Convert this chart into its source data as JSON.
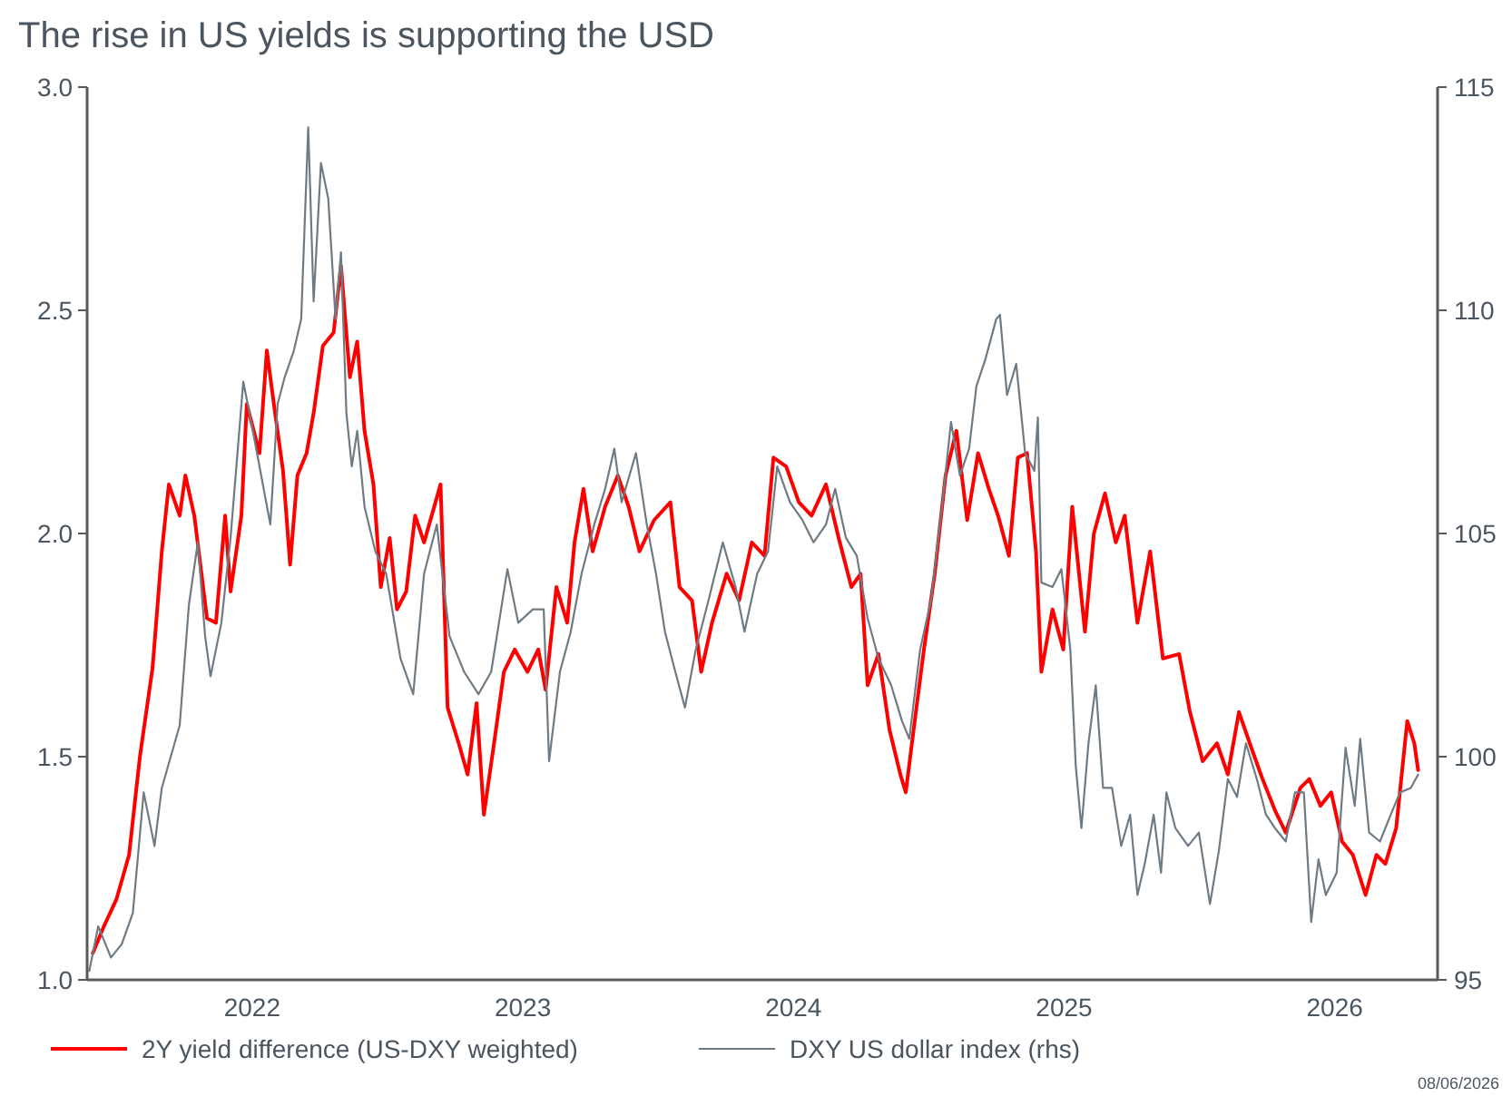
{
  "chart_data": {
    "type": "line",
    "title": "The rise in US yields is supporting the USD",
    "xlim": [
      2021.39,
      2026.38
    ],
    "xticks": [
      2022,
      2023,
      2024,
      2025,
      2026
    ],
    "ylim": [
      1.0,
      3.0
    ],
    "yticks": [
      {
        "value": 1,
        "label": "1.0"
      },
      1.5,
      {
        "value": 2,
        "label": "2.0"
      },
      2.5,
      {
        "value": 3,
        "label": "3.0"
      }
    ],
    "y2lim": [
      95,
      115
    ],
    "y2ticks": [
      95,
      100,
      105,
      110,
      115
    ],
    "legend": "bottom",
    "grid": false,
    "line_style": "solid",
    "marker": "none",
    "annotations": [
      "08/06/2026"
    ],
    "series": [
      {
        "name": "2Y yield difference (US-DXY weighted)",
        "color": "#ff0000",
        "x": [
          2021.411,
          2021.452,
          2021.498,
          2021.545,
          2021.585,
          2021.632,
          2021.666,
          2021.692,
          2021.732,
          2021.753,
          2021.786,
          2021.833,
          2021.866,
          2021.9,
          2021.92,
          2021.96,
          2021.98,
          2022.027,
          2022.054,
          2022.08,
          2022.114,
          2022.14,
          2022.167,
          2022.201,
          2022.227,
          2022.261,
          2022.301,
          2022.328,
          2022.361,
          2022.388,
          2022.415,
          2022.448,
          2022.475,
          2022.508,
          2022.535,
          2022.569,
          2022.602,
          2022.635,
          2022.696,
          2022.722,
          2022.763,
          2022.796,
          2022.829,
          2022.856,
          2022.896,
          2022.93,
          2022.97,
          2023.017,
          2023.057,
          2023.084,
          2023.124,
          2023.164,
          2023.191,
          2023.224,
          2023.258,
          2023.304,
          2023.351,
          2023.391,
          2023.431,
          2023.485,
          2023.545,
          2023.579,
          2023.625,
          2023.659,
          2023.699,
          2023.753,
          2023.799,
          2023.846,
          2023.893,
          2023.926,
          2023.973,
          2024.02,
          2024.067,
          2024.12,
          2024.167,
          2024.214,
          2024.248,
          2024.274,
          2024.314,
          2024.355,
          2024.395,
          2024.415,
          2024.448,
          2024.482,
          2024.522,
          2024.562,
          2024.602,
          2024.642,
          2024.682,
          2024.722,
          2024.756,
          2024.796,
          2024.829,
          2024.863,
          2024.896,
          2024.916,
          2024.957,
          2024.997,
          2025.03,
          2025.077,
          2025.11,
          2025.151,
          2025.191,
          2025.224,
          2025.271,
          2025.318,
          2025.365,
          2025.425,
          2025.465,
          2025.512,
          2025.565,
          2025.605,
          2025.646,
          2025.686,
          2025.733,
          2025.779,
          2025.819,
          2025.873,
          2025.906,
          2025.947,
          2025.987,
          2026.027,
          2026.067,
          2026.114,
          2026.154,
          2026.187,
          2026.227,
          2026.268,
          2026.294,
          2026.308
        ],
        "values": [
          1.06,
          1.12,
          1.18,
          1.28,
          1.5,
          1.7,
          1.96,
          2.11,
          2.04,
          2.13,
          2.04,
          1.81,
          1.8,
          2.04,
          1.87,
          2.04,
          2.29,
          2.18,
          2.41,
          2.29,
          2.14,
          1.93,
          2.13,
          2.18,
          2.27,
          2.42,
          2.45,
          2.6,
          2.35,
          2.43,
          2.23,
          2.11,
          1.88,
          1.99,
          1.83,
          1.87,
          2.04,
          1.98,
          2.11,
          1.61,
          1.53,
          1.46,
          1.62,
          1.37,
          1.54,
          1.69,
          1.74,
          1.69,
          1.74,
          1.65,
          1.88,
          1.8,
          1.98,
          2.1,
          1.96,
          2.06,
          2.13,
          2.06,
          1.96,
          2.03,
          2.07,
          1.88,
          1.85,
          1.69,
          1.8,
          1.91,
          1.85,
          1.98,
          1.95,
          2.17,
          2.15,
          2.07,
          2.04,
          2.11,
          1.99,
          1.88,
          1.91,
          1.66,
          1.73,
          1.56,
          1.46,
          1.42,
          1.58,
          1.74,
          1.91,
          2.13,
          2.23,
          2.03,
          2.18,
          2.1,
          2.04,
          1.95,
          2.17,
          2.18,
          1.96,
          1.69,
          1.83,
          1.74,
          2.06,
          1.78,
          2.0,
          2.09,
          1.98,
          2.04,
          1.8,
          1.96,
          1.72,
          1.73,
          1.6,
          1.49,
          1.53,
          1.46,
          1.6,
          1.53,
          1.45,
          1.38,
          1.33,
          1.43,
          1.45,
          1.39,
          1.42,
          1.31,
          1.28,
          1.19,
          1.28,
          1.26,
          1.34,
          1.58,
          1.53,
          1.47
        ]
      },
      {
        "name": "DXY US dollar index (rhs)",
        "color": "#6f7b84",
        "axis": "y2",
        "x": [
          2021.398,
          2021.431,
          2021.478,
          2021.518,
          2021.559,
          2021.599,
          2021.639,
          2021.666,
          2021.699,
          2021.732,
          2021.766,
          2021.799,
          2021.826,
          2021.846,
          2021.886,
          2021.92,
          2021.967,
          2021.993,
          2022.027,
          2022.067,
          2022.094,
          2022.12,
          2022.154,
          2022.181,
          2022.207,
          2022.227,
          2022.254,
          2022.281,
          2022.308,
          2022.328,
          2022.348,
          2022.368,
          2022.388,
          2022.415,
          2022.455,
          2022.495,
          2022.548,
          2022.595,
          2022.635,
          2022.682,
          2022.729,
          2022.783,
          2022.836,
          2022.883,
          2022.943,
          2022.983,
          2023.037,
          2023.077,
          2023.097,
          2023.137,
          2023.177,
          2023.217,
          2023.264,
          2023.304,
          2023.338,
          2023.365,
          2023.418,
          2023.458,
          2023.492,
          2023.525,
          2023.559,
          2023.599,
          2023.639,
          2023.686,
          2023.739,
          2023.786,
          2023.819,
          2023.866,
          2023.906,
          2023.94,
          2023.987,
          2024.033,
          2024.074,
          2024.12,
          2024.154,
          2024.194,
          2024.234,
          2024.274,
          2024.314,
          2024.361,
          2024.401,
          2024.428,
          2024.468,
          2024.508,
          2024.549,
          2024.582,
          2024.615,
          2024.649,
          2024.676,
          2024.709,
          2024.749,
          2024.763,
          2024.789,
          2024.823,
          2024.856,
          2024.89,
          2024.903,
          2024.916,
          2024.957,
          2024.99,
          2025.023,
          2025.043,
          2025.064,
          2025.09,
          2025.117,
          2025.144,
          2025.177,
          2025.211,
          2025.244,
          2025.271,
          2025.298,
          2025.331,
          2025.358,
          2025.378,
          2025.411,
          2025.458,
          2025.498,
          2025.539,
          2025.572,
          2025.605,
          2025.639,
          2025.672,
          2025.712,
          2025.746,
          2025.779,
          2025.819,
          2025.853,
          2025.886,
          2025.913,
          2025.94,
          2025.967,
          2026.007,
          2026.04,
          2026.074,
          2026.094,
          2026.127,
          2026.167,
          2026.207,
          2026.241,
          2026.281,
          2026.308
        ],
        "values": [
          95.2,
          96.2,
          95.5,
          95.8,
          96.5,
          99.2,
          98.0,
          99.3,
          100.0,
          100.7,
          103.4,
          104.8,
          102.7,
          101.8,
          103.0,
          104.9,
          108.4,
          107.6,
          106.5,
          105.2,
          107.9,
          108.5,
          109.1,
          109.8,
          114.1,
          110.2,
          113.3,
          112.5,
          109.8,
          111.3,
          107.7,
          106.5,
          107.3,
          105.6,
          104.6,
          104.1,
          102.2,
          101.4,
          104.1,
          105.2,
          102.7,
          101.9,
          101.4,
          101.9,
          104.2,
          103.0,
          103.3,
          103.3,
          99.9,
          101.9,
          102.8,
          104.1,
          105.2,
          106.0,
          106.9,
          105.7,
          106.8,
          105.2,
          104.1,
          102.8,
          102.0,
          101.1,
          102.4,
          103.5,
          104.8,
          103.8,
          102.8,
          104.1,
          104.6,
          106.5,
          105.7,
          105.3,
          104.8,
          105.2,
          106.0,
          104.9,
          104.5,
          103.1,
          102.2,
          101.6,
          100.8,
          100.4,
          102.4,
          103.5,
          105.6,
          107.5,
          106.3,
          106.9,
          108.3,
          108.9,
          109.8,
          109.9,
          108.1,
          108.8,
          106.8,
          106.4,
          107.6,
          103.9,
          103.8,
          104.2,
          102.4,
          99.8,
          98.4,
          100.3,
          101.6,
          99.3,
          99.3,
          98.0,
          98.7,
          96.9,
          97.6,
          98.7,
          97.4,
          99.2,
          98.4,
          98.0,
          98.3,
          96.7,
          97.9,
          99.5,
          99.1,
          100.3,
          99.5,
          98.7,
          98.4,
          98.1,
          99.2,
          99.2,
          96.3,
          97.7,
          96.9,
          97.4,
          100.2,
          98.9,
          100.4,
          98.3,
          98.1,
          98.7,
          99.2,
          99.3,
          99.6
        ]
      }
    ]
  }
}
